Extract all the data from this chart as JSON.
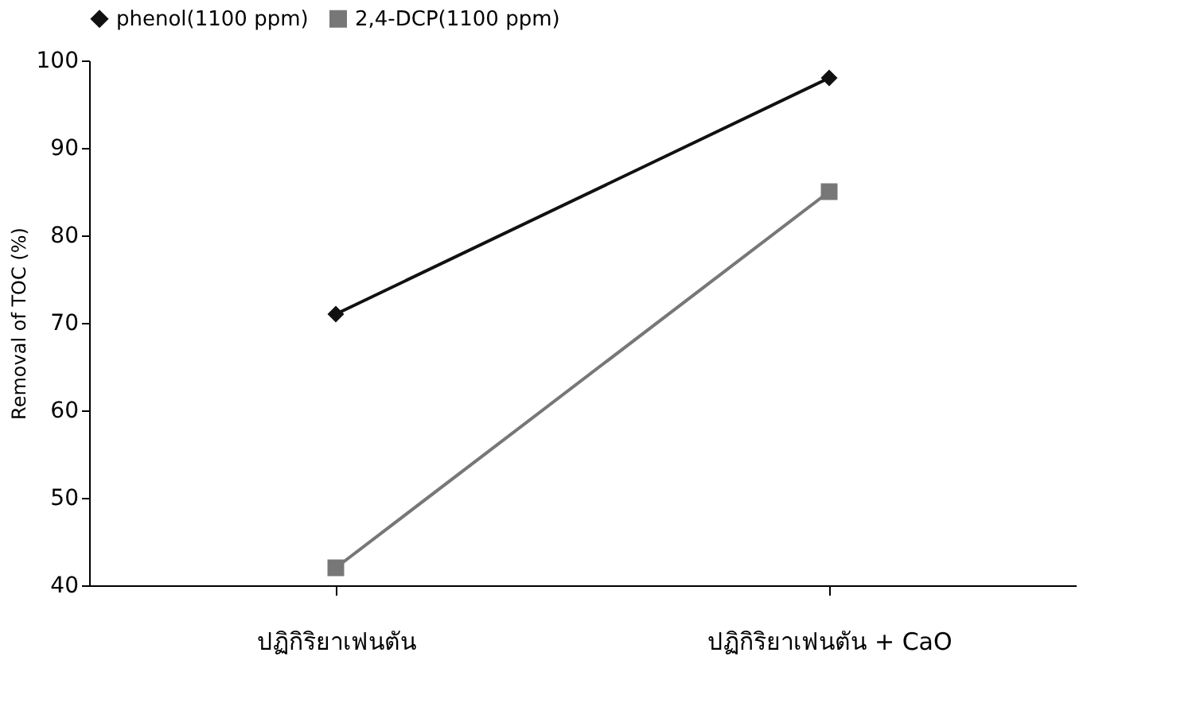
{
  "chart_data": {
    "type": "line",
    "ylabel": "Removal of TOC (%)",
    "categories": [
      "ปฏิกิริยาเฟนตัน",
      "ปฏิกิริยาเฟนตัน + CaO"
    ],
    "series": [
      {
        "name": "phenol(1100 ppm)",
        "color": "#111111",
        "marker": "diamond",
        "values": [
          71,
          98
        ]
      },
      {
        "name": "2,4-DCP(1100 ppm)",
        "color": "#777777",
        "marker": "square",
        "values": [
          42,
          85
        ]
      }
    ],
    "ylim": [
      40,
      100
    ],
    "yticks": [
      40,
      50,
      60,
      70,
      80,
      90,
      100
    ],
    "grid": false,
    "legend": "top",
    "line_style": "solid"
  }
}
